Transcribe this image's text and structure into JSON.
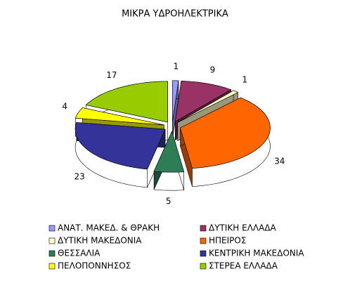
{
  "chart_data": {
    "type": "pie3d",
    "title": "ΜΙΚΡΑ ΥΔΡΟΗΛΕΚΤΡΙΚΑ",
    "categories": [
      "ΑΝΑΤ. ΜΑΚΕΔ. & ΘΡΑΚΗ",
      "ΔΥΤΙΚΗ ΕΛΛΑΔΑ",
      "ΔΥΤΙΚΗ ΜΑΚΕΔΟΝΙΑ",
      "ΗΠΕΙΡΟΣ",
      "ΘΕΣΣΑΛΙΑ",
      "ΚΕΝΤΡΙΚΗ ΜΑΚΕΔΟΝΙΑ",
      "ΠΕΛΟΠΟΝΝΗΣΟΣ",
      "ΣΤΕΡΕΑ ΕΛΛΑΔΑ"
    ],
    "values": [
      1,
      9,
      1,
      34,
      5,
      23,
      4,
      17
    ],
    "colors": [
      "#9999ff",
      "#993366",
      "#ffffcc",
      "#ff6600",
      "#2e7d57",
      "#333399",
      "#ffff00",
      "#99cc00"
    ],
    "legend": "bottom"
  }
}
